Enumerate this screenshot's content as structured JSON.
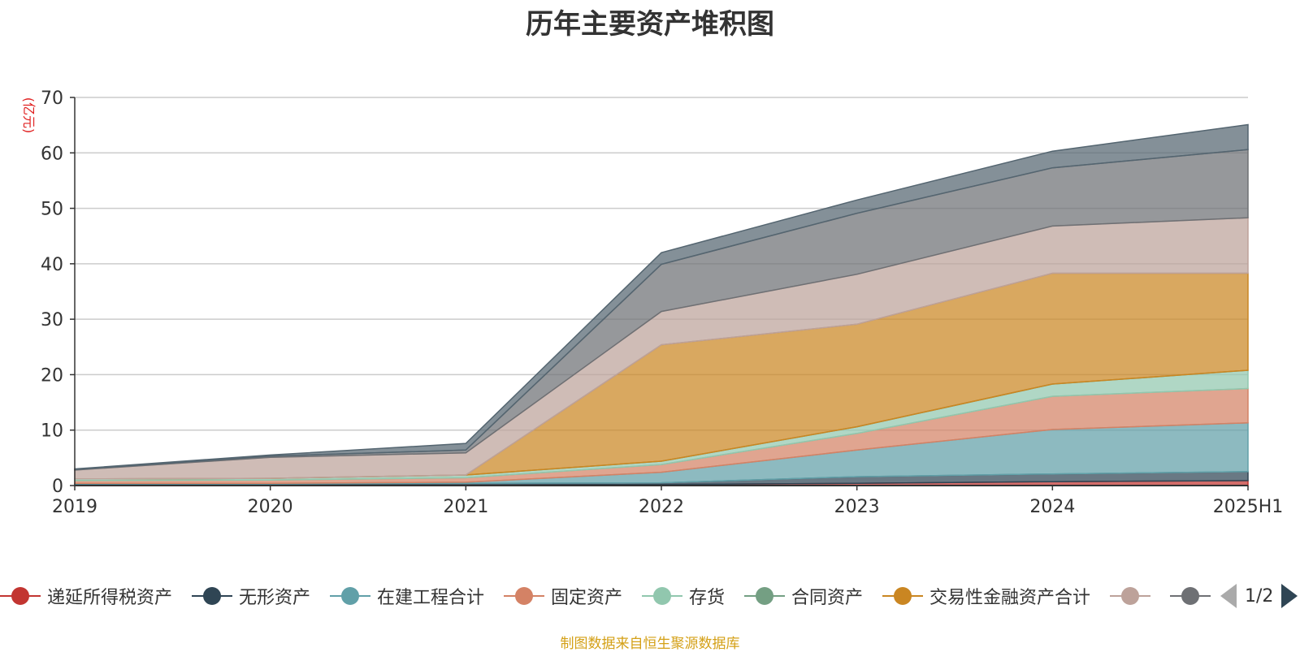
{
  "title": "历年主要资产堆积图",
  "footer": "制图数据来自恒生聚源数据库",
  "legend_page": "1/2",
  "chart_data": {
    "type": "area",
    "stacked": true,
    "title": "历年主要资产堆积图",
    "ylabel": "(亿元)",
    "ylim": [
      0,
      70
    ],
    "yticks": [
      0,
      10,
      20,
      30,
      40,
      50,
      60,
      70
    ],
    "categories": [
      "2019",
      "2020",
      "2021",
      "2022",
      "2023",
      "2024",
      "2025H1"
    ],
    "grid": true,
    "legend_position": "bottom",
    "series": [
      {
        "name": "递延所得税资产",
        "color": "#c23531",
        "values": [
          0.1,
          0.1,
          0.1,
          0.2,
          0.4,
          0.7,
          0.9
        ]
      },
      {
        "name": "无形资产",
        "color": "#2f4554",
        "values": [
          0.2,
          0.2,
          0.3,
          0.3,
          1.2,
          1.4,
          1.6
        ]
      },
      {
        "name": "在建工程合计",
        "color": "#61a0a8",
        "values": [
          0.1,
          0.1,
          0.2,
          1.9,
          4.8,
          8.0,
          8.8
        ]
      },
      {
        "name": "固定资产",
        "color": "#d48265",
        "values": [
          0.5,
          0.6,
          0.8,
          1.4,
          3.0,
          6.0,
          6.2
        ]
      },
      {
        "name": "存货",
        "color": "#91c7ae",
        "values": [
          0.3,
          0.3,
          0.5,
          0.6,
          1.2,
          2.2,
          3.3
        ]
      },
      {
        "name": "合同资产",
        "color": "#749f83",
        "values": [
          0.0,
          0.0,
          0.0,
          0.0,
          0.0,
          0.0,
          0.0
        ]
      },
      {
        "name": "交易性金融资产合计",
        "color": "#ca8622",
        "values": [
          0.0,
          0.0,
          0.0,
          21.0,
          18.5,
          20.0,
          17.5
        ]
      },
      {
        "name": "",
        "color": "#bda29a",
        "values": [
          1.6,
          3.8,
          4.0,
          6.0,
          9.0,
          8.5,
          10.0
        ]
      },
      {
        "name": "",
        "color": "#6e7074",
        "values": [
          0.1,
          0.2,
          0.5,
          8.5,
          11.0,
          10.5,
          12.3
        ]
      },
      {
        "name": "",
        "color": "#546570",
        "values": [
          0.1,
          0.2,
          1.2,
          2.1,
          2.4,
          3.0,
          4.5
        ]
      }
    ]
  }
}
